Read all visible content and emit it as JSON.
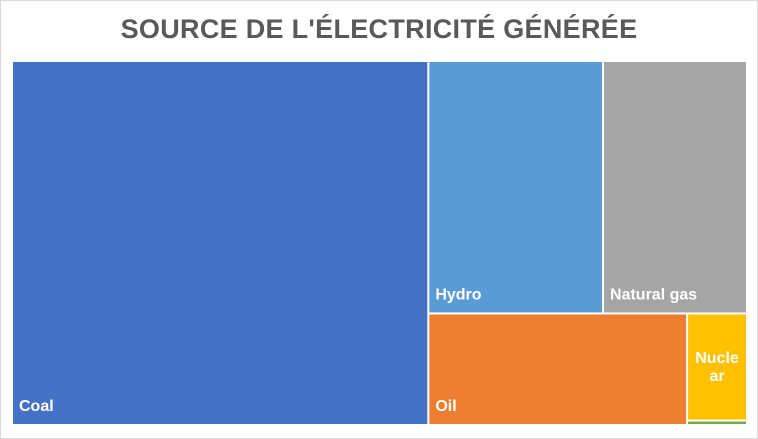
{
  "chart_data": {
    "type": "treemap",
    "title": "SOURCE DE L'ÉLECTRICITÉ GÉNÉRÉE",
    "items": [
      {
        "name": "Coal",
        "value": 56.7,
        "color": "#4472c4",
        "label_lines": [
          "Coal"
        ]
      },
      {
        "name": "Hydro",
        "value": 16.5,
        "color": "#5b9bd5",
        "label_lines": [
          "Hydro"
        ]
      },
      {
        "name": "Natural gas",
        "value": 13.6,
        "color": "#a5a5a5",
        "label_lines": [
          "Natural gas"
        ]
      },
      {
        "name": "Oil",
        "value": 10.8,
        "color": "#ed7d31",
        "label_lines": [
          "Oil"
        ]
      },
      {
        "name": "Nuclear",
        "value": 2.4,
        "color": "#ffc000",
        "label_lines": [
          "Nucle",
          "ar"
        ]
      },
      {
        "name": "",
        "value": 0.1,
        "color": "#70ad47",
        "label_lines": []
      }
    ]
  }
}
